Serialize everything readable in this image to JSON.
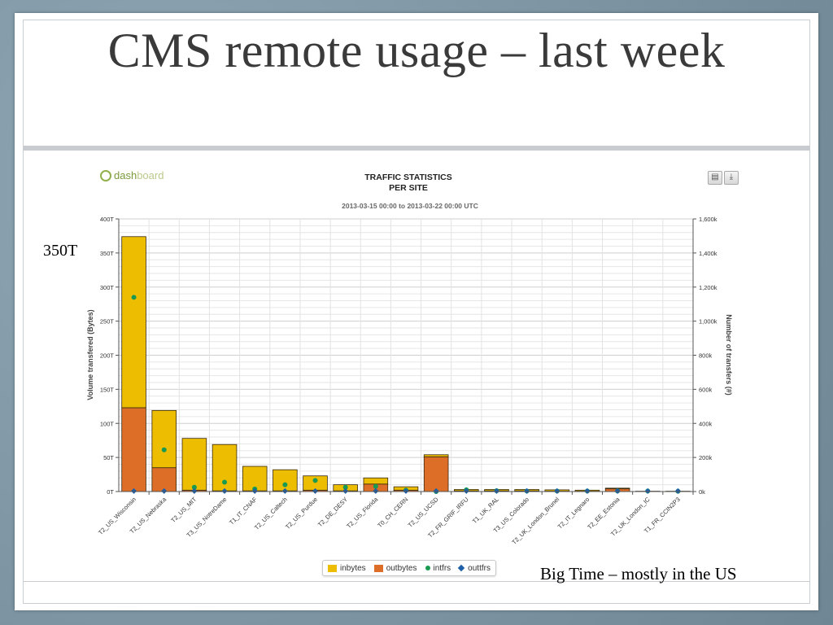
{
  "slide": {
    "title": "CMS remote usage – last week",
    "annotation_left": "350T",
    "annotation_bottom": "Big Time – mostly in the US"
  },
  "dashboard": {
    "logo_bold": "dash",
    "logo_thin": "board",
    "print_icon": "print-icon",
    "download_icon": "download-icon"
  },
  "colors": {
    "inbytes": "#ecbd00",
    "outbytes": "#dd6e28",
    "intfrs": "#1a9a50",
    "outtfrs": "#1d5fa8"
  },
  "chart_data": {
    "type": "bar",
    "title": "TRAFFIC STATISTICS",
    "subtitle": "PER SITE",
    "time_range": "2013-03-15 00:00 to 2013-03-22 00:00 UTC",
    "ylabel": "Volume transfered (Bytes)",
    "y2label": "Number of transfers (#)",
    "ylim": [
      0,
      400
    ],
    "y2lim": [
      0,
      1600
    ],
    "yticks": [
      "0T",
      "50T",
      "100T",
      "150T",
      "200T",
      "250T",
      "300T",
      "350T",
      "400T"
    ],
    "y2ticks": [
      "0k",
      "200k",
      "400k",
      "600k",
      "800k",
      "1,000k",
      "1,200k",
      "1,400k",
      "1,600k"
    ],
    "grid": true,
    "legend_position": "bottom",
    "categories": [
      "T2_US_Wisconsin",
      "T2_US_Nebraska",
      "T2_US_MIT",
      "T3_US_NotreDame",
      "T1_IT_CNAF",
      "T2_US_Caltech",
      "T2_US_Purdue",
      "T2_DE_DESY",
      "T2_US_Florida",
      "T0_CH_CERN",
      "T2_US_UCSD",
      "T2_FR_GRIF_IRFU",
      "T1_UK_RAL",
      "T3_US_Colorado",
      "T2_UK_London_Brunel",
      "T2_IT_Legnaro",
      "T2_EE_Estonia",
      "T2_UK_London_IC",
      "T1_FR_CCIN2P3"
    ],
    "series": [
      {
        "name": "inbytes",
        "kind": "bar",
        "axis": "left",
        "values": [
          251,
          84,
          76,
          68,
          36,
          31,
          21,
          9,
          9,
          5,
          3,
          2,
          2,
          2,
          2,
          1.5,
          1,
          0.5,
          0.5
        ]
      },
      {
        "name": "outbytes",
        "kind": "bar",
        "axis": "left",
        "values": [
          123,
          35,
          2,
          1,
          1,
          1,
          2,
          1,
          11,
          2,
          51,
          1,
          1,
          1,
          0.5,
          0.5,
          4,
          0,
          0
        ]
      },
      {
        "name": "intfrs",
        "kind": "dot",
        "axis": "right",
        "values": [
          1140,
          245,
          25,
          55,
          15,
          40,
          65,
          25,
          30,
          8,
          0,
          10,
          5,
          3,
          3,
          3,
          3,
          3,
          2
        ]
      },
      {
        "name": "outtfrs",
        "kind": "diamond",
        "axis": "right",
        "values": [
          3,
          3,
          3,
          3,
          3,
          3,
          3,
          3,
          3,
          3,
          3,
          3,
          3,
          3,
          3,
          3,
          3,
          3,
          3
        ]
      }
    ]
  }
}
